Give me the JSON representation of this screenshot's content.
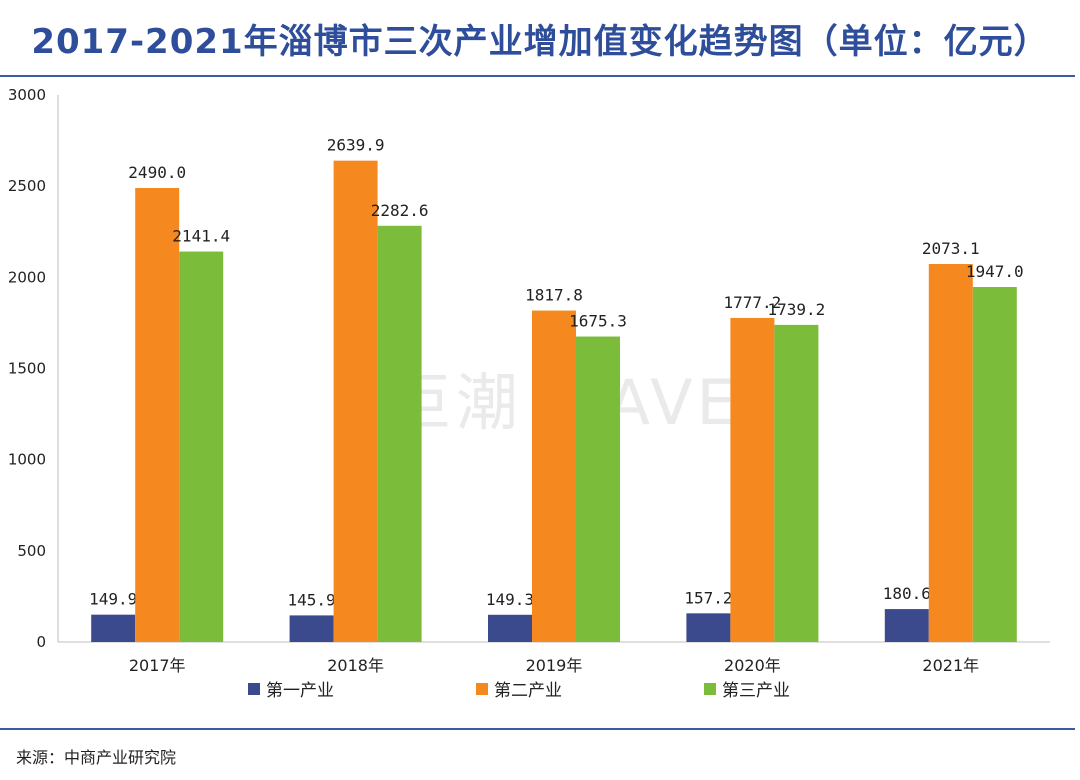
{
  "title": "2017-2021年淄博市三次产业增加值变化趋势图（单位：亿元）",
  "source": "来源：中商产业研究院",
  "watermark": "巨潮 WAVE",
  "chart_data": {
    "type": "bar",
    "title": "2017-2021年淄博市三次产业增加值变化趋势图（单位：亿元）",
    "categories": [
      "2017年",
      "2018年",
      "2019年",
      "2020年",
      "2021年"
    ],
    "series": [
      {
        "name": "第一产业",
        "color": "#3a4a8c",
        "values": [
          149.9,
          145.9,
          149.3,
          157.2,
          180.6
        ],
        "labels": [
          "149.9",
          "145.9",
          "149.3",
          "157.2",
          "180.6"
        ]
      },
      {
        "name": "第二产业",
        "color": "#f5891f",
        "values": [
          2490.0,
          2639.9,
          1817.8,
          1777.2,
          2073.1
        ],
        "labels": [
          "2490.0",
          "2639.9",
          "1817.8",
          "1777.2",
          "2073.1"
        ]
      },
      {
        "name": "第三产业",
        "color": "#7bbd3a",
        "values": [
          2141.4,
          2282.6,
          1675.3,
          1739.2,
          1947.0
        ],
        "labels": [
          "2141.4",
          "2282.6",
          "1675.3",
          "1739.2",
          "1947.0"
        ]
      }
    ],
    "ylim": [
      0,
      3000
    ],
    "yticks": [
      0,
      500,
      1000,
      1500,
      2000,
      2500,
      3000
    ],
    "grid": false,
    "legend_position": "bottom"
  }
}
